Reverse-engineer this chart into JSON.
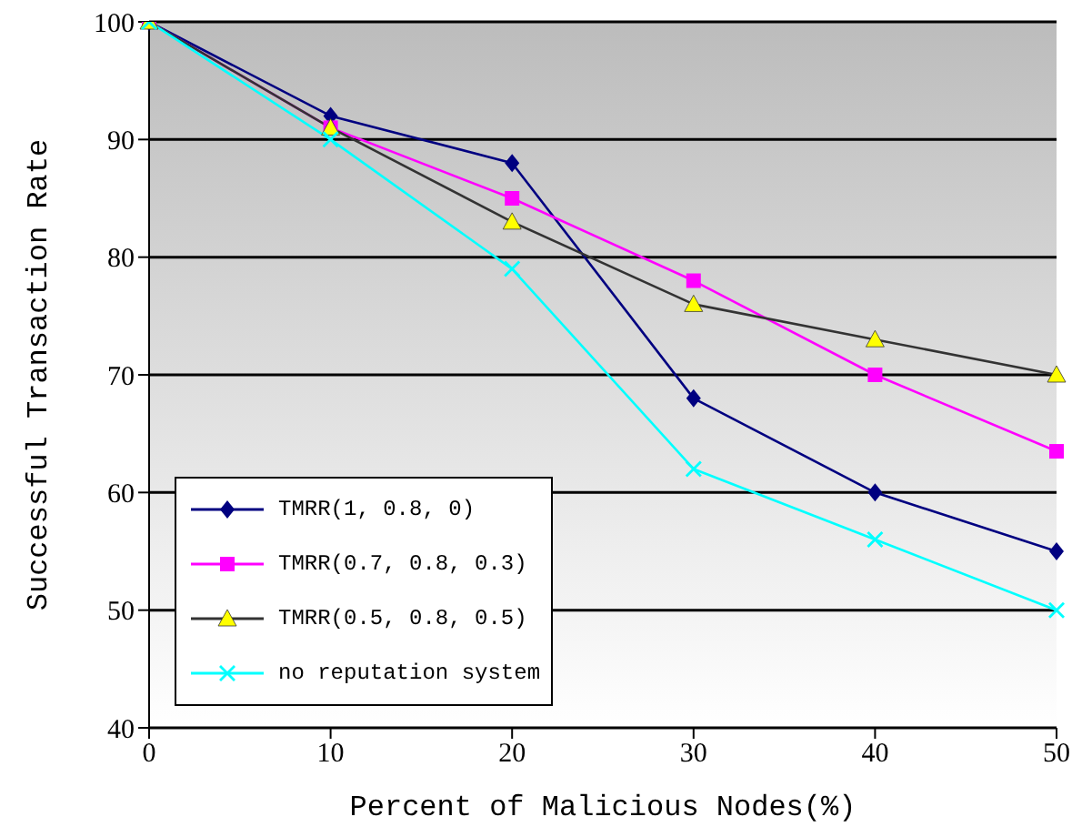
{
  "chart_data": {
    "type": "line",
    "xlabel": "Percent of Malicious Nodes(%)",
    "ylabel": "Successful Transaction Rate",
    "categories": [
      "0",
      "10",
      "20",
      "30",
      "40",
      "50"
    ],
    "series": [
      {
        "name": "TMRR(1, 0.8, 0)",
        "color": "#000080",
        "marker": "diamond",
        "values": [
          100,
          92,
          88,
          68,
          60,
          55
        ]
      },
      {
        "name": "TMRR(0.7, 0.8, 0.3)",
        "color": "#ff00ff",
        "marker": "square",
        "values": [
          100,
          91,
          85,
          78,
          70,
          63.5
        ]
      },
      {
        "name": "TMRR(0.5, 0.8, 0.5)",
        "color": "#333333",
        "marker": "triangle",
        "values": [
          100,
          91,
          83,
          76,
          73,
          70
        ]
      },
      {
        "name": "no reputation system",
        "color": "#00ffff",
        "marker": "cross",
        "values": [
          100,
          90,
          79,
          62,
          56,
          50
        ]
      }
    ],
    "ylim": [
      40,
      100
    ],
    "yticks": [
      40,
      50,
      60,
      70,
      80,
      90,
      100
    ],
    "grid": "y",
    "legend": "bottom left"
  }
}
